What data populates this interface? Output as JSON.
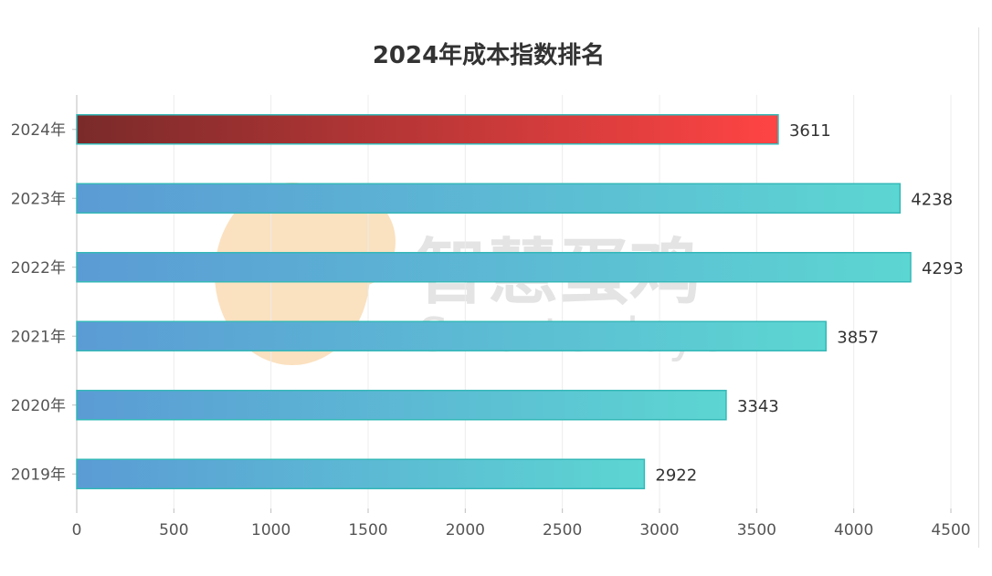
{
  "chart_data": {
    "type": "bar",
    "orientation": "horizontal",
    "title": "2024年成本指数排名",
    "categories": [
      "2024年",
      "2023年",
      "2022年",
      "2021年",
      "2020年",
      "2019年"
    ],
    "values": [
      3611,
      4238,
      4293,
      3857,
      3343,
      2922
    ],
    "xlim": [
      0,
      4500
    ],
    "xticks": [
      0,
      500,
      1000,
      1500,
      2000,
      2500,
      3000,
      3500,
      4000,
      4500
    ],
    "grid": true,
    "highlight_category": "2024年",
    "colors": {
      "highlight_start": "#7a2a2a",
      "highlight_end": "#ff4444",
      "bar_start": "#5b9bd5",
      "bar_end": "#5cd6d2",
      "bar_stroke": "#35b8b8",
      "grid": "#ececec",
      "axis": "#bdbdbd",
      "label": "#555555",
      "value_label": "#333333"
    }
  },
  "watermark": {
    "text": "智慧蛋鸡",
    "subtext": "Smarter layer",
    "logo_color": "#f7c98c",
    "text_color": "#cfcfcf"
  }
}
